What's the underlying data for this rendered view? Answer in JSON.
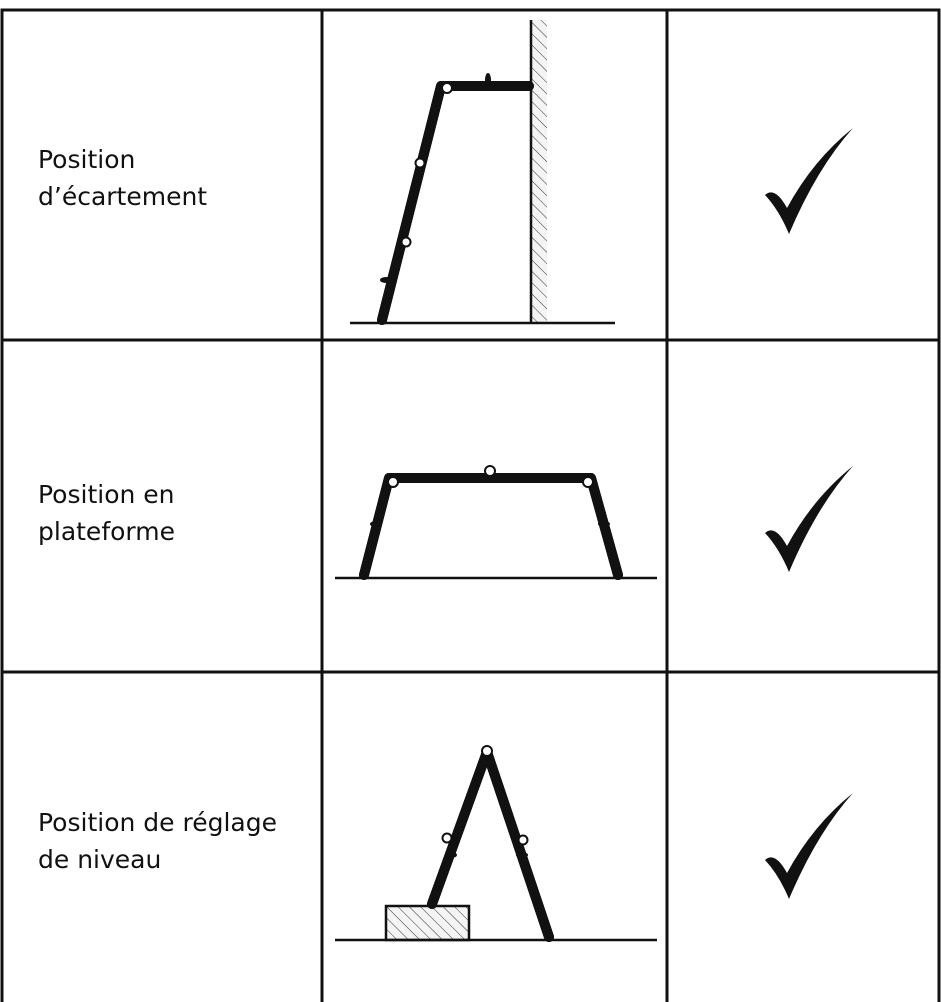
{
  "table": {
    "rows": [
      {
        "label": [
          "Position",
          "d’écartement"
        ]
      },
      {
        "label": [
          "Position en",
          "plateforme"
        ]
      },
      {
        "label": [
          "Position de réglage",
          "de niveau"
        ]
      }
    ]
  }
}
